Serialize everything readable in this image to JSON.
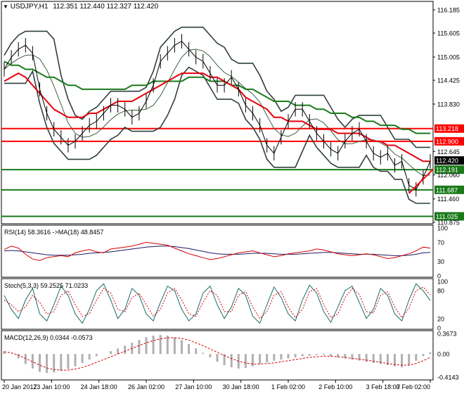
{
  "header": {
    "symbol": "USDJPY,H1",
    "ohlc": "112.351 112.440 112.327 112.420"
  },
  "colors": {
    "price": "#000000",
    "bollinger": "#2f3f3f",
    "ema_fast": "#3a5f3a",
    "ma_red": "#e8000b",
    "ma_green": "#1a7a1a",
    "hline_red": "#ff0000",
    "hline_green": "#1a7a1a",
    "rsi_line": "#d40000",
    "rsi_ma": "#1a1a66",
    "stoch_main": "#1a6b6b",
    "stoch_signal": "#d40000",
    "macd_hist": "#b0b0b0",
    "macd_signal": "#d40000"
  },
  "chart_data": [
    {
      "type": "line",
      "title": "USDJPY,H1",
      "x_ticks": [
        "20 Jan 2017",
        "23 Jan 10:00",
        "24 Jan 18:00",
        "26 Jan 02:00",
        "27 Jan 10:00",
        "30 Jan 18:00",
        "1 Feb 02:00",
        "2 Feb 10:00",
        "3 Feb 18:00",
        "7 Feb 02:00"
      ],
      "y_ticks": [
        "116.185",
        "115.605",
        "115.005",
        "114.425",
        "113.830",
        "113.218",
        "112.900",
        "112.645",
        "112.420",
        "112.191",
        "112.060",
        "111.687",
        "111.460",
        "111.025",
        "110.875"
      ],
      "ylim": [
        110.875,
        116.185
      ],
      "price_series": [
        114.7,
        115.0,
        115.2,
        115.3,
        115.1,
        114.2,
        113.6,
        113.2,
        113.0,
        112.8,
        112.9,
        113.1,
        113.3,
        113.4,
        113.6,
        113.8,
        113.8,
        113.7,
        113.5,
        113.6,
        113.9,
        114.3,
        114.9,
        115.1,
        115.3,
        115.4,
        115.2,
        115.0,
        114.9,
        114.6,
        114.3,
        114.3,
        114.5,
        114.2,
        113.8,
        113.6,
        113.3,
        112.8,
        112.6,
        113.0,
        113.4,
        113.7,
        113.7,
        113.4,
        113.1,
        112.9,
        112.7,
        112.6,
        112.9,
        113.1,
        113.2,
        112.9,
        112.6,
        112.5,
        112.6,
        112.3,
        112.4,
        111.8,
        111.7,
        112.0,
        112.4
      ],
      "moving_average_red": [
        114.4,
        114.5,
        114.6,
        114.5,
        114.3,
        114.1,
        113.9,
        113.7,
        113.6,
        113.5,
        113.5,
        113.5,
        113.6,
        113.6,
        113.7,
        113.8,
        113.9,
        113.9,
        113.9,
        114.0,
        114.1,
        114.2,
        114.3,
        114.4,
        114.5,
        114.6,
        114.6,
        114.6,
        114.6,
        114.5,
        114.5,
        114.4,
        114.3,
        114.2,
        114.0,
        113.9,
        113.8,
        113.7,
        113.5,
        113.5,
        113.4,
        113.4,
        113.4,
        113.3,
        113.2,
        113.2,
        113.2,
        113.1,
        113.1,
        113.1,
        113.1,
        113.0,
        112.9,
        112.9,
        112.8,
        112.8,
        112.7,
        112.6,
        112.5,
        112.4,
        112.4
      ],
      "moving_average_green": [
        114.9,
        114.8,
        114.8,
        114.7,
        114.7,
        114.6,
        114.5,
        114.5,
        114.4,
        114.3,
        114.3,
        114.2,
        114.2,
        114.2,
        114.2,
        114.2,
        114.2,
        114.2,
        114.3,
        114.3,
        114.3,
        114.4,
        114.4,
        114.4,
        114.4,
        114.4,
        114.5,
        114.5,
        114.5,
        114.4,
        114.4,
        114.4,
        114.3,
        114.3,
        114.2,
        114.2,
        114.1,
        114.0,
        113.9,
        113.9,
        113.9,
        113.8,
        113.8,
        113.8,
        113.7,
        113.7,
        113.6,
        113.6,
        113.6,
        113.5,
        113.5,
        113.4,
        113.4,
        113.3,
        113.3,
        113.3,
        113.2,
        113.2,
        113.1,
        113.1,
        113.1
      ],
      "horizontal_levels": [
        113.218,
        112.9,
        112.191,
        111.687,
        111.025
      ],
      "trendline": {
        "from": 111.6,
        "to": 112.2
      }
    },
    {
      "type": "line",
      "title": "RSI(14) 58.3616 ->MA(18) 48.8457",
      "y_ticks": [
        "100",
        "70",
        "30",
        "0"
      ],
      "ylim": [
        0,
        100
      ],
      "rsi_series": [
        55,
        62,
        58,
        45,
        35,
        32,
        38,
        40,
        42,
        40,
        48,
        52,
        55,
        50,
        48,
        56,
        58,
        60,
        62,
        66,
        70,
        68,
        66,
        64,
        58,
        52,
        46,
        42,
        38,
        34,
        36,
        40,
        44,
        48,
        50,
        52,
        48,
        44,
        40,
        42,
        46,
        48,
        50,
        52,
        56,
        54,
        50,
        46,
        44,
        42,
        44,
        46,
        44,
        40,
        36,
        38,
        42,
        46,
        52,
        60,
        58
      ],
      "ma_series": [
        52,
        53,
        52,
        50,
        48,
        46,
        44,
        43,
        43,
        43,
        44,
        45,
        47,
        48,
        49,
        50,
        52,
        54,
        56,
        58,
        60,
        61,
        62,
        62,
        61,
        59,
        57,
        54,
        51,
        48,
        46,
        45,
        45,
        45,
        46,
        47,
        47,
        47,
        46,
        45,
        45,
        45,
        46,
        47,
        48,
        49,
        49,
        48,
        47,
        46,
        45,
        45,
        45,
        44,
        43,
        42,
        42,
        43,
        45,
        48,
        49
      ]
    },
    {
      "type": "line",
      "title": "Stoch(5,3,3) 59.2525 71.0233",
      "y_ticks": [
        "100",
        "80",
        "20",
        "0"
      ],
      "ylim": [
        0,
        100
      ],
      "main_series": [
        70,
        40,
        20,
        60,
        85,
        30,
        15,
        50,
        90,
        70,
        30,
        10,
        40,
        80,
        95,
        60,
        20,
        40,
        85,
        70,
        30,
        15,
        55,
        90,
        80,
        40,
        15,
        30,
        75,
        90,
        50,
        20,
        45,
        85,
        70,
        25,
        10,
        50,
        88,
        65,
        30,
        15,
        60,
        92,
        75,
        35,
        12,
        45,
        80,
        90,
        55,
        20,
        40,
        85,
        70,
        30,
        15,
        60,
        95,
        80,
        59
      ],
      "signal_series": [
        60,
        50,
        35,
        45,
        70,
        55,
        30,
        35,
        70,
        80,
        50,
        25,
        30,
        60,
        85,
        75,
        40,
        35,
        65,
        75,
        50,
        25,
        40,
        75,
        85,
        60,
        30,
        25,
        55,
        80,
        70,
        35,
        35,
        70,
        78,
        45,
        20,
        35,
        70,
        78,
        45,
        22,
        40,
        78,
        85,
        50,
        22,
        30,
        65,
        85,
        72,
        35,
        32,
        70,
        78,
        45,
        22,
        42,
        80,
        88,
        71
      ]
    },
    {
      "type": "bar",
      "title": "MACD(12,26,9) 0.0344 -0.0573",
      "y_ticks": [
        "0.3673",
        "0.00",
        "-0.4143"
      ],
      "ylim": [
        -0.4143,
        0.3673
      ],
      "histogram": [
        0.05,
        0.0,
        -0.08,
        -0.18,
        -0.26,
        -0.32,
        -0.34,
        -0.33,
        -0.3,
        -0.27,
        -0.22,
        -0.16,
        -0.1,
        -0.04,
        0.0,
        0.05,
        0.1,
        0.15,
        0.2,
        0.25,
        0.3,
        0.33,
        0.34,
        0.33,
        0.3,
        0.25,
        0.18,
        0.1,
        0.02,
        -0.06,
        -0.14,
        -0.2,
        -0.24,
        -0.26,
        -0.25,
        -0.22,
        -0.18,
        -0.15,
        -0.12,
        -0.1,
        -0.08,
        -0.06,
        -0.04,
        -0.03,
        -0.02,
        -0.02,
        -0.04,
        -0.06,
        -0.08,
        -0.1,
        -0.12,
        -0.14,
        -0.16,
        -0.18,
        -0.2,
        -0.22,
        -0.24,
        -0.2,
        -0.12,
        -0.04,
        0.03
      ],
      "signal_series": [
        0.04,
        0.02,
        -0.02,
        -0.08,
        -0.14,
        -0.2,
        -0.25,
        -0.28,
        -0.29,
        -0.29,
        -0.27,
        -0.24,
        -0.2,
        -0.15,
        -0.1,
        -0.05,
        0.0,
        0.05,
        0.1,
        0.15,
        0.2,
        0.24,
        0.27,
        0.29,
        0.29,
        0.28,
        0.25,
        0.2,
        0.15,
        0.09,
        0.03,
        -0.03,
        -0.08,
        -0.13,
        -0.16,
        -0.18,
        -0.18,
        -0.17,
        -0.16,
        -0.14,
        -0.12,
        -0.1,
        -0.08,
        -0.06,
        -0.05,
        -0.04,
        -0.04,
        -0.05,
        -0.06,
        -0.08,
        -0.09,
        -0.11,
        -0.13,
        -0.15,
        -0.17,
        -0.19,
        -0.2,
        -0.2,
        -0.17,
        -0.12,
        -0.06
      ]
    }
  ]
}
